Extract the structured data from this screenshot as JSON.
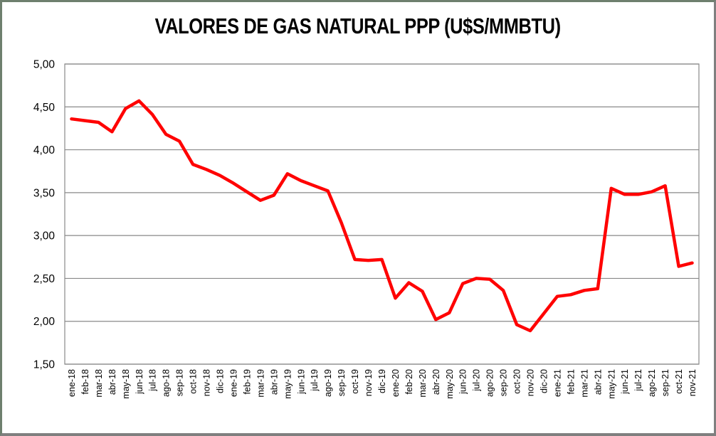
{
  "window": {
    "background": "#ffffff",
    "outer_border_color": "#6e7f6e"
  },
  "chart_data": {
    "type": "line",
    "title": "VALORES DE GAS NATURAL PPP (U$S/MMBTU)",
    "xlabel": "",
    "ylabel": "",
    "ylim": [
      1.5,
      5.0
    ],
    "ytick_step": 0.5,
    "ytick_labels": [
      "5,00",
      "4,50",
      "4,00",
      "3,50",
      "3,00",
      "2,50",
      "2,00",
      "1,50"
    ],
    "grid": true,
    "gridline_color": "#898989",
    "plot_frame_color": "#898989",
    "legend_position": "none",
    "line_color": "#ff0000",
    "line_width": 4.5,
    "decimal_separator": ",",
    "categories": [
      "ene-18",
      "feb-18",
      "mar-18",
      "abr-18",
      "may-18",
      "jun-18",
      "jul-18",
      "ago-18",
      "sep-18",
      "oct-18",
      "nov-18",
      "dic-18",
      "ene-19",
      "feb-19",
      "mar-19",
      "abr-19",
      "may-19",
      "jun-19",
      "jul-19",
      "ago-19",
      "sep-19",
      "oct-19",
      "nov-19",
      "dic-19",
      "ene-20",
      "feb-20",
      "mar-20",
      "abr-20",
      "may-20",
      "jun-20",
      "jul-20",
      "ago-20",
      "sep-20",
      "oct-20",
      "nov-20",
      "dic-20",
      "ene-21",
      "feb-21",
      "mar-21",
      "abr-21",
      "may-21",
      "jun-21",
      "jul-21",
      "ago-21",
      "sep-21",
      "oct-21",
      "nov-21"
    ],
    "series": [
      {
        "name": "Gas natural PPP (U$S/MMBTU)",
        "values": [
          4.36,
          4.34,
          4.32,
          4.21,
          4.48,
          4.57,
          4.41,
          4.18,
          4.1,
          3.83,
          3.77,
          3.7,
          3.61,
          3.51,
          3.41,
          3.47,
          3.72,
          3.64,
          3.58,
          3.52,
          3.15,
          2.72,
          2.71,
          2.72,
          2.27,
          2.45,
          2.35,
          2.02,
          2.1,
          2.44,
          2.5,
          2.49,
          2.36,
          1.96,
          1.89,
          2.09,
          2.29,
          2.31,
          2.36,
          2.38,
          3.55,
          3.48,
          3.48,
          3.51,
          3.58,
          2.64,
          2.68
        ]
      }
    ]
  }
}
